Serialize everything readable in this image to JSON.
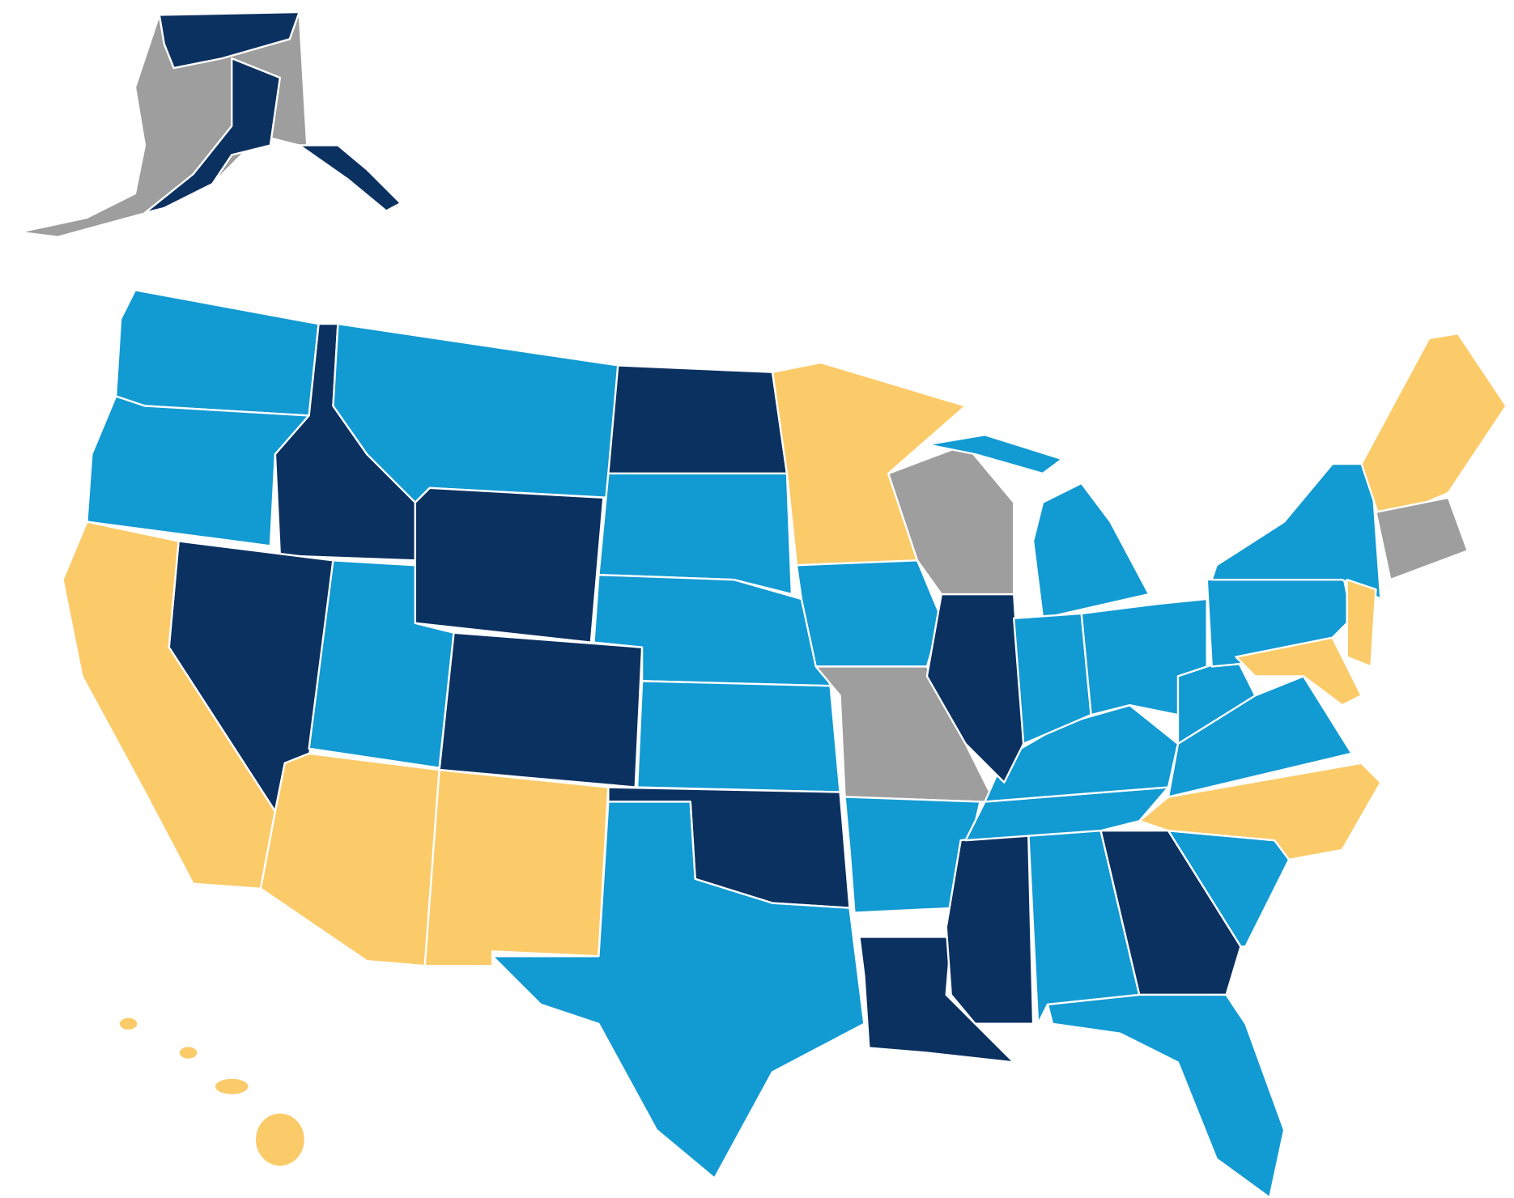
{
  "map": {
    "colors": {
      "dark": "#0b3161",
      "light": "#129ad3",
      "yellow": "#fbcb6a",
      "gray": "#9e9e9e",
      "border": "#ffffff"
    }
  }
}
